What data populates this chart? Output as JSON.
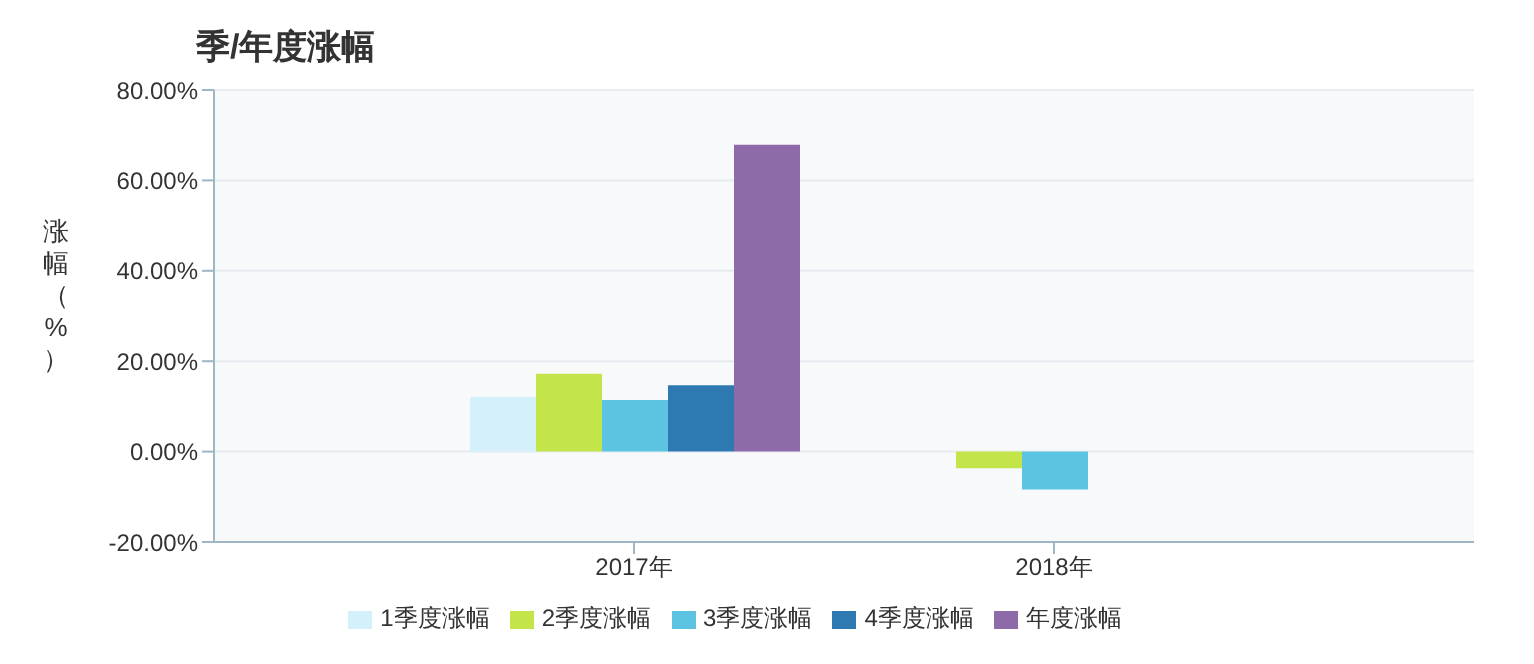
{
  "chart_data": {
    "type": "bar",
    "title": "季/年度涨幅",
    "ylabel": "涨幅（%）",
    "categories": [
      "2017年",
      "2018年"
    ],
    "series": [
      {
        "name": "1季度涨幅",
        "color": "#d4f0fa",
        "values": [
          12.1,
          0
        ]
      },
      {
        "name": "2季度涨幅",
        "color": "#c3e54a",
        "values": [
          17.2,
          -3.7
        ]
      },
      {
        "name": "3季度涨幅",
        "color": "#5cc3e0",
        "values": [
          11.4,
          -8.4
        ]
      },
      {
        "name": "4季度涨幅",
        "color": "#2f79b3",
        "values": [
          14.7,
          null
        ]
      },
      {
        "name": "年度涨幅",
        "color": "#8e6ba8",
        "values": [
          67.9,
          null
        ]
      }
    ],
    "ylim": [
      -20,
      80
    ],
    "yticks": [
      {
        "value": -20,
        "label": "-20.00%"
      },
      {
        "value": 0,
        "label": "0.00%"
      },
      {
        "value": 20,
        "label": "20.00%"
      },
      {
        "value": 40,
        "label": "40.00%"
      },
      {
        "value": 60,
        "label": "60.00%"
      },
      {
        "value": 80,
        "label": "80.00%"
      }
    ],
    "grid": "y",
    "legend": "bottom"
  }
}
